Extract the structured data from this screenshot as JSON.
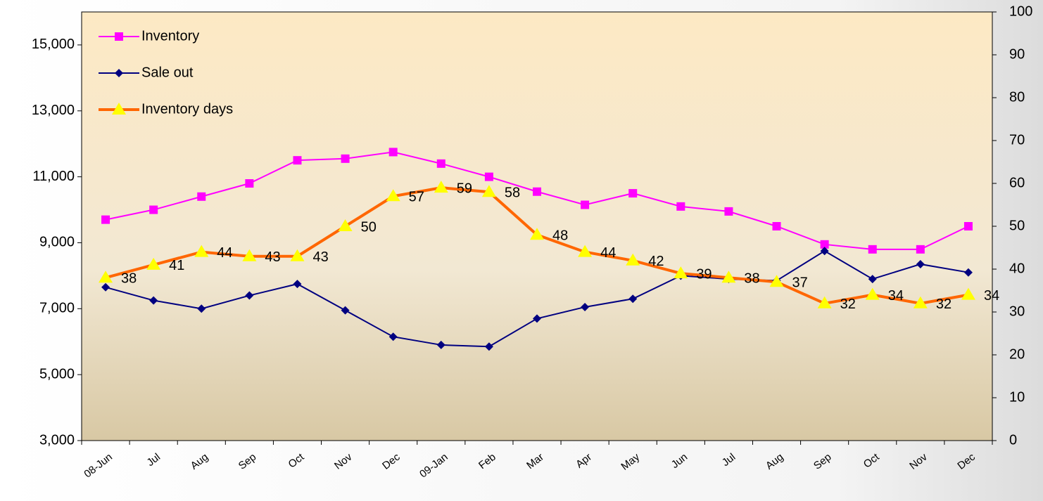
{
  "chart_data": {
    "type": "line",
    "categories": [
      "08-Jun",
      "Jul",
      "Aug",
      "Sep",
      "Oct",
      "Nov",
      "Dec",
      "09-Jan",
      "Feb",
      "Mar",
      "Apr",
      "May",
      "Jun",
      "Jul",
      "Aug",
      "Sep",
      "Oct",
      "Nov",
      "Dec"
    ],
    "series": [
      {
        "name": "Inventory",
        "color": "#ff00ff",
        "marker": "square",
        "values": [
          9700,
          10000,
          10400,
          10800,
          11500,
          11550,
          11750,
          11400,
          11000,
          10550,
          10150,
          10500,
          10100,
          9950,
          9500,
          8950,
          8800,
          8800,
          9500
        ]
      },
      {
        "name": "Sale out",
        "color": "#000080",
        "marker": "diamond",
        "values": [
          7650,
          7250,
          7000,
          7400,
          7750,
          6950,
          6150,
          5900,
          5850,
          6700,
          7050,
          7300,
          8000,
          7900,
          7850,
          8750,
          7900,
          8350,
          8100
        ]
      },
      {
        "name": "Inventory days",
        "color": "#ff6600",
        "marker": "triangle",
        "marker_color": "#ffff00",
        "axis": "y2",
        "data_labels": true,
        "values": [
          38,
          41,
          44,
          43,
          43,
          50,
          57,
          59,
          58,
          48,
          44,
          42,
          39,
          38,
          37,
          32,
          34,
          32,
          34
        ]
      }
    ],
    "ylim": [
      3000,
      16000
    ],
    "yticks": [
      {
        "value": 3000,
        "label": "3,000"
      },
      {
        "value": 5000,
        "label": "5,000"
      },
      {
        "value": 7000,
        "label": "7,000"
      },
      {
        "value": 9000,
        "label": "9,000"
      },
      {
        "value": 11000,
        "label": "11,000"
      },
      {
        "value": 13000,
        "label": "13,000"
      },
      {
        "value": 15000,
        "label": "15,000"
      }
    ],
    "y2lim": [
      0,
      100
    ],
    "y2ticks": [
      0,
      10,
      20,
      30,
      40,
      50,
      60,
      70,
      80,
      90,
      100
    ],
    "legend": "top-left"
  }
}
